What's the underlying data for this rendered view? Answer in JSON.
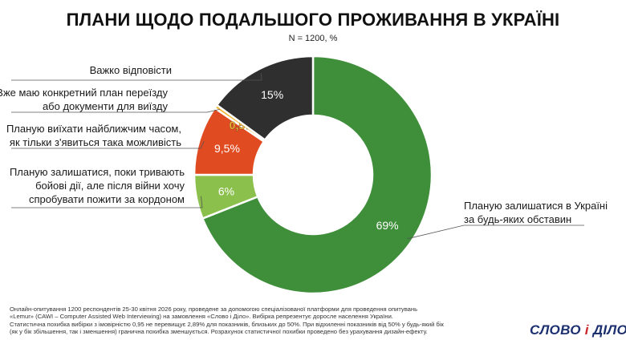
{
  "title": "ПЛАНИ ЩОДО ПОДАЛЬШОГО ПРОЖИВАННЯ В УКРАЇНІ",
  "subtitle": "N = 1200, %",
  "chart_data": {
    "type": "pie",
    "title": "ПЛАНИ ЩОДО ПОДАЛЬШОГО ПРОЖИВАННЯ В УКРАЇНІ",
    "subtitle": "N = 1200, %",
    "slices": [
      {
        "label_lines": [
          "Планую залишатися в Україні",
          "за будь-яких обставин"
        ],
        "value": 69,
        "value_label": "69%",
        "color": "#3e8e3a"
      },
      {
        "label_lines": [
          "Планую залишатися, поки тривають",
          "бойові дії, але після війни хочу",
          "спробувати пожити за кордоном"
        ],
        "value": 6,
        "value_label": "6%",
        "color": "#8bc04c"
      },
      {
        "label_lines": [
          "Планую виїхати найближчим часом,",
          "як тільки з'явиться така можливість"
        ],
        "value": 9.5,
        "value_label": "9,5%",
        "color": "#e04b21"
      },
      {
        "label_lines": [
          "Вже маю конкретний план переїзду",
          "або документи для виїзду"
        ],
        "value": 0.5,
        "value_label": "0,5%",
        "color": "#f2b632"
      },
      {
        "label_lines": [
          "Важко відповісти"
        ],
        "value": 15,
        "value_label": "15%",
        "color": "#2f2f2f"
      }
    ]
  },
  "footer": {
    "lines": [
      "Онлайн-опитування 1200 респондентів 25-30 квітня 2026 року, проведене за допомогою спеціалізованої платформи для проведення опитувань",
      "«Lemur» (CAWI – Computer Assisted Web Interviewing) на замовлення «Слово і Діло». Вибірка репрезентує доросле населення України.",
      "Статистична похибка вибірки з імовірністю 0,95 не перевищує 2,89% для показників, близьких до 50%. При відхиленні показників від 50% у будь-який бік",
      "(як у бік збільшення, так і зменшення) гранична похибка зменшується. Розрахунок статистичної похибки проведено без урахування дизайн-ефекту."
    ]
  },
  "logo": {
    "left": "СЛОВО",
    "amp": "і",
    "right": "ДІЛО"
  }
}
